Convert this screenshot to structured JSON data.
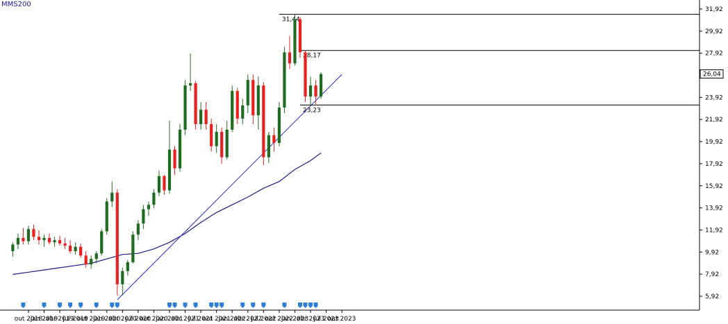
{
  "legend": {
    "label": "MMS200",
    "color": "#1a1aa6"
  },
  "colors": {
    "up": "#1f6b1f",
    "down": "#e8201e",
    "ma": "#1a1a80",
    "trend": "#2a2ad6",
    "level": "#000000",
    "axis": "#000000",
    "marker": "#2f7fd6",
    "price_tag_bg": "#ffffff"
  },
  "chart_data": {
    "type": "candlestick",
    "title": "",
    "x_ticks": [
      "out 2018",
      "jan 2019",
      "abr 2019",
      "jul 2019",
      "out 2019",
      "jan 2020",
      "abr 2020",
      "jul 2020",
      "out 2020",
      "jan 2021",
      "abr 2021",
      "jul 2021",
      "out 2021",
      "jan 2022",
      "abr 2022",
      "jul 2022",
      "out 2022",
      "jan 2023",
      "abr 2023",
      "jul 2023",
      "out 2023"
    ],
    "y_ticks": [
      "31,92",
      "29,92",
      "27,92",
      "25,92",
      "23,92",
      "21,92",
      "19,92",
      "17,92",
      "15,92",
      "13,92",
      "11,92",
      "9,92",
      "7,92",
      "5,92"
    ],
    "ylim": [
      5.0,
      32.4
    ],
    "last_price": "26,04",
    "levels": [
      {
        "label": "31,44",
        "value": 31.44,
        "from": "2022-10"
      },
      {
        "label": "28,17",
        "value": 28.17,
        "from": "2023-02"
      },
      {
        "label": "23,23",
        "value": 23.23,
        "from": "2023-02"
      }
    ],
    "trendline": {
      "start": {
        "date": "2020-03",
        "value": 5.6
      },
      "end": {
        "date": "2023-10",
        "value": 26.0
      }
    },
    "ma_series": {
      "name": "MMS200",
      "points": [
        [
          "2018-07",
          7.9
        ],
        [
          "2018-10",
          8.1
        ],
        [
          "2019-01",
          8.3
        ],
        [
          "2019-04",
          8.5
        ],
        [
          "2019-07",
          8.7
        ],
        [
          "2019-10",
          8.9
        ],
        [
          "2020-01",
          9.3
        ],
        [
          "2020-04",
          9.7
        ],
        [
          "2020-07",
          9.8
        ],
        [
          "2020-10",
          10.2
        ],
        [
          "2021-01",
          10.8
        ],
        [
          "2021-04",
          11.6
        ],
        [
          "2021-07",
          12.6
        ],
        [
          "2021-10",
          13.5
        ],
        [
          "2022-01",
          14.2
        ],
        [
          "2022-04",
          14.9
        ],
        [
          "2022-07",
          15.7
        ],
        [
          "2022-10",
          16.3
        ],
        [
          "2023-01",
          17.4
        ],
        [
          "2023-04",
          18.2
        ],
        [
          "2023-06",
          18.9
        ]
      ]
    },
    "candles": [
      [
        "2018-07",
        10.0,
        10.8,
        9.5,
        10.6
      ],
      [
        "2018-08",
        10.6,
        11.6,
        10.2,
        11.2
      ],
      [
        "2018-09",
        11.2,
        12.1,
        10.6,
        10.9
      ],
      [
        "2018-10",
        10.9,
        12.3,
        10.6,
        12.0
      ],
      [
        "2018-11",
        12.0,
        12.4,
        11.0,
        11.3
      ],
      [
        "2018-12",
        11.3,
        11.9,
        10.6,
        11.0
      ],
      [
        "2019-01",
        11.0,
        11.5,
        10.4,
        11.2
      ],
      [
        "2019-02",
        11.2,
        11.6,
        10.6,
        10.8
      ],
      [
        "2019-03",
        10.8,
        11.3,
        10.4,
        11.0
      ],
      [
        "2019-04",
        11.0,
        11.4,
        10.5,
        10.7
      ],
      [
        "2019-05",
        10.7,
        11.2,
        10.2,
        10.5
      ],
      [
        "2019-06",
        10.5,
        11.0,
        9.8,
        10.0
      ],
      [
        "2019-07",
        10.0,
        10.8,
        9.7,
        10.4
      ],
      [
        "2019-08",
        10.4,
        10.7,
        9.4,
        9.6
      ],
      [
        "2019-09",
        9.6,
        10.0,
        8.5,
        8.8
      ],
      [
        "2019-10",
        8.8,
        9.6,
        8.4,
        9.3
      ],
      [
        "2019-11",
        9.3,
        10.0,
        8.9,
        9.8
      ],
      [
        "2019-12",
        9.8,
        12.0,
        9.6,
        11.8
      ],
      [
        "2020-01",
        11.8,
        14.8,
        11.5,
        14.5
      ],
      [
        "2020-02",
        14.5,
        16.3,
        14.0,
        15.3
      ],
      [
        "2020-03",
        15.3,
        15.6,
        6.0,
        7.0
      ],
      [
        "2020-04",
        7.0,
        8.5,
        6.0,
        8.2
      ],
      [
        "2020-05",
        8.2,
        9.2,
        7.8,
        9.0
      ],
      [
        "2020-06",
        9.0,
        11.8,
        8.9,
        11.5
      ],
      [
        "2020-07",
        11.5,
        12.8,
        11.0,
        12.5
      ],
      [
        "2020-08",
        12.5,
        14.2,
        12.0,
        13.8
      ],
      [
        "2020-09",
        13.8,
        14.5,
        13.2,
        14.2
      ],
      [
        "2020-10",
        14.2,
        15.6,
        13.9,
        15.3
      ],
      [
        "2020-11",
        15.3,
        17.3,
        15.0,
        16.8
      ],
      [
        "2020-12",
        16.8,
        16.9,
        15.1,
        15.5
      ],
      [
        "2021-01",
        15.5,
        21.8,
        15.2,
        19.2
      ],
      [
        "2021-02",
        19.2,
        19.5,
        16.9,
        17.5
      ],
      [
        "2021-03",
        17.5,
        21.5,
        17.2,
        21.0
      ],
      [
        "2021-04",
        21.0,
        25.5,
        20.5,
        25.0
      ],
      [
        "2021-05",
        25.0,
        27.9,
        24.5,
        25.2
      ],
      [
        "2021-06",
        25.2,
        25.4,
        21.0,
        21.5
      ],
      [
        "2021-07",
        21.5,
        23.5,
        21.0,
        22.8
      ],
      [
        "2021-08",
        22.8,
        23.5,
        21.0,
        21.5
      ],
      [
        "2021-09",
        21.5,
        22.0,
        19.0,
        19.5
      ],
      [
        "2021-10",
        19.5,
        21.5,
        18.9,
        20.8
      ],
      [
        "2021-11",
        20.8,
        21.2,
        17.9,
        18.5
      ],
      [
        "2021-12",
        18.5,
        21.8,
        18.3,
        21.0
      ],
      [
        "2022-01",
        21.0,
        25.0,
        20.8,
        24.5
      ],
      [
        "2022-02",
        24.5,
        24.8,
        21.5,
        22.0
      ],
      [
        "2022-03",
        22.0,
        23.8,
        21.5,
        23.2
      ],
      [
        "2022-04",
        23.2,
        26.0,
        22.5,
        25.5
      ],
      [
        "2022-05",
        25.5,
        26.0,
        21.5,
        22.3
      ],
      [
        "2022-06",
        22.3,
        25.8,
        21.0,
        25.0
      ],
      [
        "2022-07",
        25.0,
        25.3,
        17.8,
        18.5
      ],
      [
        "2022-08",
        18.5,
        20.8,
        18.0,
        20.5
      ],
      [
        "2022-09",
        20.5,
        21.2,
        19.0,
        19.8
      ],
      [
        "2022-10",
        19.8,
        23.5,
        19.5,
        23.0
      ],
      [
        "2022-11",
        23.0,
        28.5,
        22.5,
        28.0
      ],
      [
        "2022-12",
        28.0,
        29.5,
        26.5,
        27.0
      ],
      [
        "2023-01",
        27.0,
        31.44,
        26.8,
        31.0
      ],
      [
        "2023-02",
        31.0,
        31.2,
        27.5,
        28.0
      ],
      [
        "2023-03",
        28.0,
        28.17,
        23.5,
        24.0
      ],
      [
        "2023-04",
        24.0,
        25.8,
        23.23,
        25.0
      ],
      [
        "2023-05",
        25.0,
        25.5,
        23.3,
        24.0
      ],
      [
        "2023-06",
        24.0,
        26.2,
        23.8,
        26.04
      ]
    ],
    "markers": [
      "2018-09",
      "2019-01",
      "2019-04",
      "2019-06",
      "2019-08",
      "2019-11",
      "2020-02",
      "2020-03",
      "2021-01",
      "2021-02",
      "2021-04",
      "2021-06",
      "2021-09",
      "2021-10",
      "2021-11",
      "2022-03",
      "2022-05",
      "2022-07",
      "2022-11",
      "2023-02",
      "2023-03",
      "2023-04",
      "2023-05"
    ]
  }
}
